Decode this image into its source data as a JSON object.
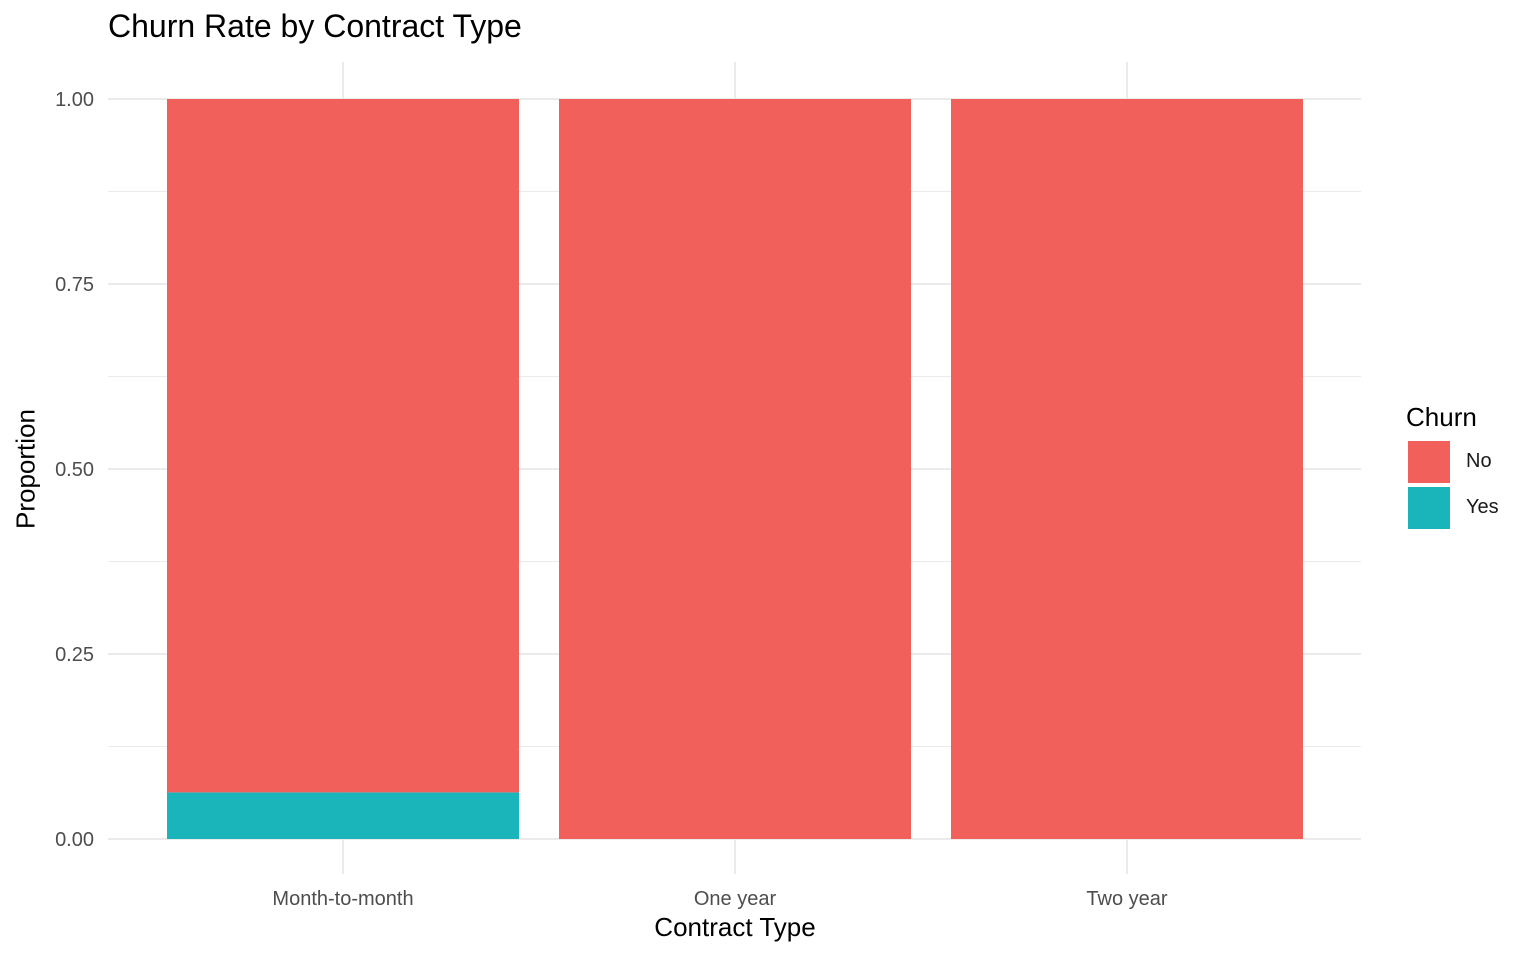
{
  "chart_data": {
    "type": "bar",
    "stacked": true,
    "title": "Churn Rate by Contract Type",
    "xlabel": "Contract Type",
    "ylabel": "Proportion",
    "categories": [
      "Month-to-month",
      "One year",
      "Two year"
    ],
    "series": [
      {
        "name": "No",
        "color": "#F2605B",
        "values": [
          0.937,
          1.0,
          1.0
        ]
      },
      {
        "name": "Yes",
        "color": "#1AB5BA",
        "values": [
          0.063,
          0.0,
          0.0
        ]
      }
    ],
    "ylim": [
      0,
      1
    ],
    "yticks": [
      0,
      0.25,
      0.5,
      0.75,
      1.0
    ],
    "ytick_labels": [
      "0.00",
      "0.25",
      "0.50",
      "0.75",
      "1.00"
    ],
    "grid": true,
    "legend": {
      "title": "Churn",
      "position": "right",
      "entries": [
        "No",
        "Yes"
      ]
    }
  }
}
